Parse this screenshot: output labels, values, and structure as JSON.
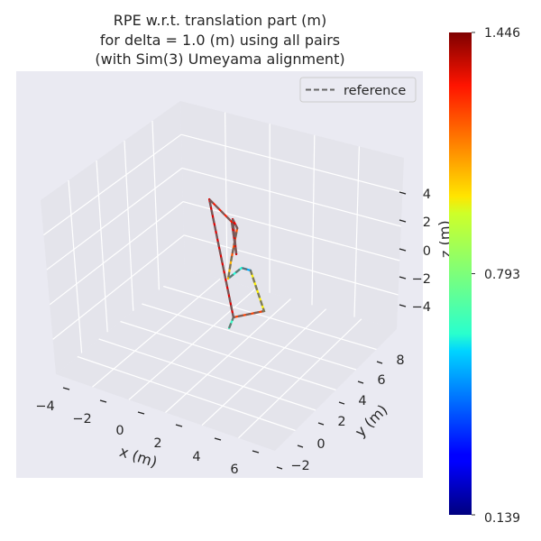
{
  "chart_data": {
    "type": "line3d",
    "title_lines": [
      "RPE w.r.t. translation part (m)",
      "for delta = 1.0 (m) using all pairs",
      "(with Sim(3) Umeyama alignment)"
    ],
    "xlabel": "x (m)",
    "ylabel": "y (m)",
    "zlabel": "z (m)",
    "x_ticks": [
      "−4",
      "−2",
      "0",
      "2",
      "4",
      "6"
    ],
    "y_ticks": [
      "−2",
      "0",
      "2",
      "4",
      "6",
      "8"
    ],
    "z_ticks": [
      "4",
      "2",
      "0",
      "−2",
      "−4"
    ],
    "xlim": [
      -4.5,
      7
    ],
    "ylim": [
      -3,
      9
    ],
    "zlim": [
      -5.6,
      5.5
    ],
    "grid": true,
    "legend": {
      "position": "top-right",
      "entries": [
        {
          "label": "reference",
          "style": "dashed",
          "color": "#666666"
        }
      ]
    },
    "colorbar": {
      "colormap": "jet",
      "min": 0.139,
      "max": 1.446,
      "tick_labels": [
        "1.446",
        "0.793",
        "0.139"
      ],
      "tick_values": [
        1.446,
        0.793,
        0.139
      ]
    },
    "trajectory": [
      {
        "x": 0.87,
        "y": 4,
        "z": -4.83,
        "error": 0.2
      },
      {
        "x": 1.1,
        "y": 4,
        "z": -3.95,
        "error": 1.2
      },
      {
        "x": 2.71,
        "y": 4,
        "z": -2.74,
        "error": 1.2
      },
      {
        "x": 2.0,
        "y": 4,
        "z": -0.19,
        "error": 0.75
      },
      {
        "x": 1.53,
        "y": 4,
        "z": -0.23,
        "error": 0.3
      },
      {
        "x": 0.82,
        "y": 4,
        "z": -1.33,
        "error": 1.05
      },
      {
        "x": 1.01,
        "y": 4,
        "z": 0.3,
        "error": 1.05
      },
      {
        "x": 1.3,
        "y": 4,
        "z": 2.49,
        "error": 1.3
      },
      {
        "x": 1.06,
        "y": 4,
        "z": 3.01,
        "error": 1.3
      },
      {
        "x": 1.25,
        "y": 4,
        "z": 0.61,
        "error": 1.35
      },
      {
        "x": 1.01,
        "y": 4,
        "z": 2.8,
        "error": 1.3
      },
      {
        "x": -0.17,
        "y": 4,
        "z": 3.84,
        "error": 1.2
      },
      {
        "x": 1.1,
        "y": 4,
        "z": -3.95,
        "error": 1.446
      }
    ],
    "colors": {
      "background": "#eaeaf2",
      "pane": "#e4e4eb",
      "grid": "#ffffff",
      "reference": "#666666"
    }
  }
}
